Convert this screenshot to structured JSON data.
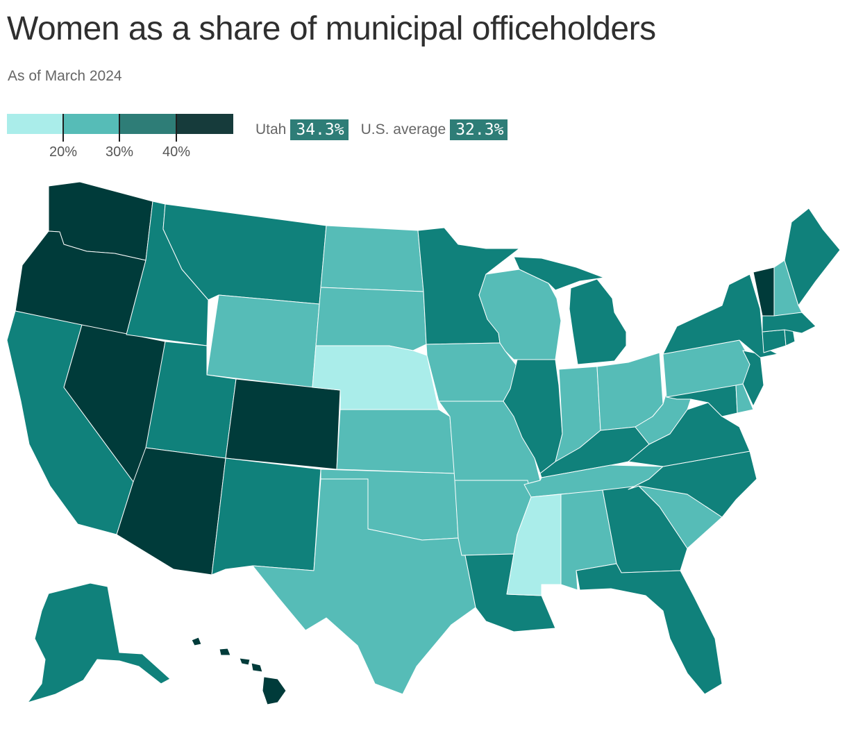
{
  "title": "Women as a share of municipal officeholders",
  "subtitle": "As of March 2024",
  "legend": {
    "ticks": [
      "20%",
      "30%",
      "40%"
    ],
    "bins": [
      {
        "color": "#aaedea"
      },
      {
        "color": "#56bcb7"
      },
      {
        "color": "#2e7d77"
      },
      {
        "color": "#163b3b"
      }
    ]
  },
  "callouts": [
    {
      "label": "Utah",
      "value": "34.3%",
      "color": "#2e7d77"
    },
    {
      "label": "U.S. average",
      "value": "32.3%",
      "color": "#2e7d77"
    }
  ],
  "colors": {
    "lowest": "#aaedea",
    "low": "#56bcb7",
    "mid": "#10817b",
    "high": "#003b3a",
    "border": "#ffffff"
  },
  "states": {
    "WA": "high",
    "OR": "high",
    "NV": "high",
    "AZ": "high",
    "CO": "high",
    "VT": "high",
    "HI": "high",
    "CA": "mid",
    "ID": "mid",
    "MT": "mid",
    "UT": "mid",
    "NM": "mid",
    "MN": "mid",
    "IL": "mid",
    "MI": "mid",
    "KY": "mid",
    "VA": "mid",
    "NC": "mid",
    "GA": "mid",
    "FL": "mid",
    "LA": "mid",
    "NY": "mid",
    "ME": "mid",
    "MA": "mid",
    "CT": "mid",
    "RI": "mid",
    "NJ": "mid",
    "MD": "mid",
    "AK": "mid",
    "WY": "low",
    "ND": "low",
    "SD": "low",
    "KS": "low",
    "OK": "low",
    "TX": "low",
    "IA": "low",
    "MO": "low",
    "AR": "low",
    "WI": "low",
    "IN": "low",
    "OH": "low",
    "TN": "low",
    "AL": "low",
    "SC": "low",
    "WV": "low",
    "PA": "low",
    "NH": "low",
    "DE": "low",
    "NE": "lowest",
    "MS": "lowest"
  }
}
